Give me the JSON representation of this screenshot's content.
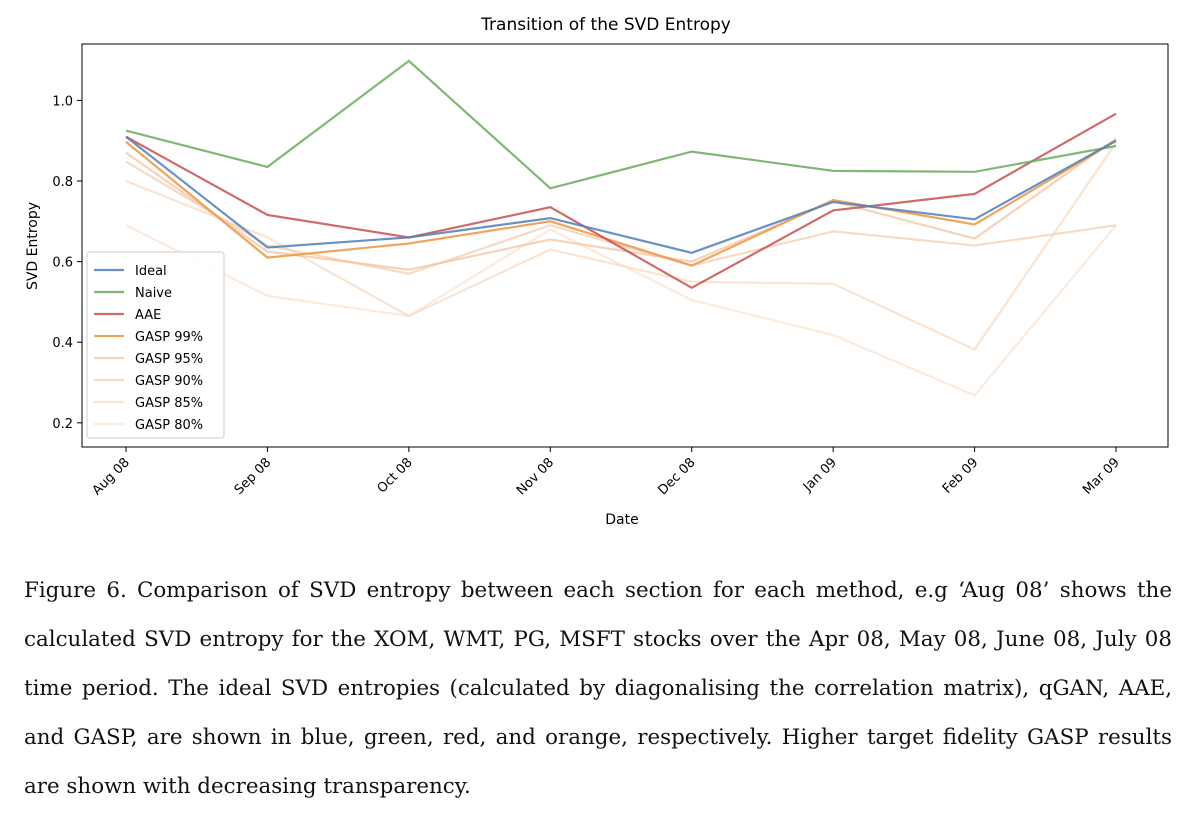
{
  "chart_data": {
    "type": "line",
    "title": "Transition of the SVD Entropy",
    "xlabel": "Date",
    "ylabel": "SVD Entropy",
    "categories": [
      "Aug 08",
      "Sep 08",
      "Oct 08",
      "Nov 08",
      "Dec 08",
      "Jan 09",
      "Feb 09",
      "Mar 09"
    ],
    "ylim": [
      0.14,
      1.14
    ],
    "yticks": [
      0.2,
      0.4,
      0.6,
      0.8,
      1.0
    ],
    "ytick_labels": [
      "0.2",
      "0.4",
      "0.6",
      "0.8",
      "1.0"
    ],
    "legend_position": "lower-left",
    "series": [
      {
        "name": "Ideal",
        "color": "#4f7fb8",
        "opacity": 0.85,
        "values": [
          0.91,
          0.635,
          0.66,
          0.708,
          0.622,
          0.748,
          0.705,
          0.9
        ]
      },
      {
        "name": "Naive",
        "color": "#6aaa5e",
        "opacity": 0.85,
        "values": [
          0.925,
          0.835,
          1.098,
          0.782,
          0.873,
          0.825,
          0.823,
          0.887
        ]
      },
      {
        "name": "AAE",
        "color": "#c95050",
        "opacity": 0.85,
        "values": [
          0.91,
          0.716,
          0.66,
          0.735,
          0.535,
          0.727,
          0.768,
          0.967
        ]
      },
      {
        "name": "GASP 99%",
        "color": "#ef9a4a",
        "opacity": 0.9,
        "values": [
          0.897,
          0.61,
          0.645,
          0.7,
          0.59,
          0.753,
          0.692,
          0.9
        ]
      },
      {
        "name": "GASP 95%",
        "color": "#f4c3a0",
        "opacity": 0.75,
        "values": [
          0.87,
          0.625,
          0.58,
          0.655,
          0.6,
          0.75,
          0.657,
          0.905
        ]
      },
      {
        "name": "GASP 90%",
        "color": "#f4cba8",
        "opacity": 0.7,
        "values": [
          0.848,
          0.64,
          0.57,
          0.69,
          0.59,
          0.675,
          0.64,
          0.69
        ]
      },
      {
        "name": "GASP 85%",
        "color": "#f8d8bd",
        "opacity": 0.7,
        "values": [
          0.8,
          0.66,
          0.465,
          0.63,
          0.55,
          0.545,
          0.382,
          0.895
        ]
      },
      {
        "name": "GASP 80%",
        "color": "#fbe3d0",
        "opacity": 0.75,
        "values": [
          0.69,
          0.515,
          0.465,
          0.68,
          0.505,
          0.418,
          0.268,
          0.69
        ]
      }
    ]
  },
  "caption": "Figure 6.  Comparison of SVD entropy between each section for each method, e.g ‘Aug 08’ shows the calculated SVD entropy for the XOM, WMT, PG, MSFT stocks over the Apr 08, May 08, June 08, July 08 time period.  The ideal SVD entropies (calculated by diagonalising the correlation matrix), qGAN, AAE, and GASP, are shown in blue, green, red, and orange, respectively. Higher target fidelity GASP results are shown with decreasing transparency."
}
